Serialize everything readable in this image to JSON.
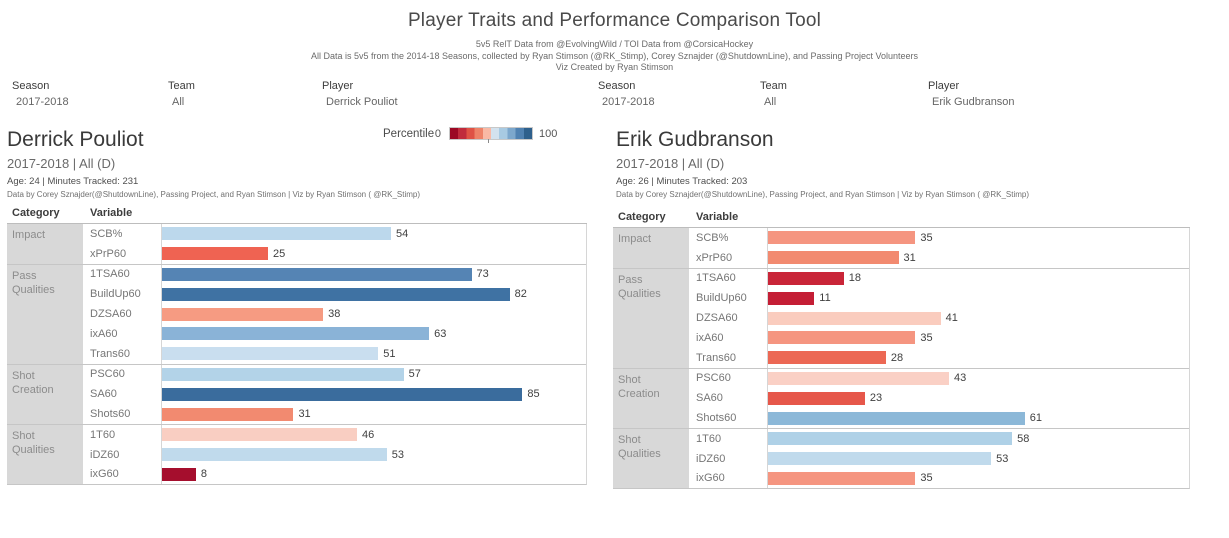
{
  "title": "Player Traits and Performance Comparison Tool",
  "subtitles": [
    "5v5 RelT Data from @EvolvingWild / TOI Data from @CorsicaHockey",
    "All Data is 5v5 from the 2014-18 Seasons, collected by Ryan Stimson (@RK_Stimp), Corey Sznajder (@ShutdownLine), and Passing Project Volunteers",
    "Viz Created by Ryan Stimson"
  ],
  "legend": {
    "label": "Percentile",
    "min": "0",
    "max": "100",
    "colors": [
      "#9C0824",
      "#C02B3C",
      "#DF5245",
      "#EE8268",
      "#F9B9A5",
      "#D3E2EE",
      "#A8CAE2",
      "#7CA7CC",
      "#4F81B1",
      "#2E608C"
    ]
  },
  "column_headers": {
    "category": "Category",
    "variable": "Variable"
  },
  "panels": [
    {
      "filters": [
        {
          "label": "Season",
          "value": "2017-2018"
        },
        {
          "label": "Team",
          "value": "All"
        },
        {
          "label": "Player",
          "value": "Derrick Pouliot"
        }
      ],
      "player": {
        "name": "Derrick Pouliot",
        "context": "2017-2018 | All (D)",
        "meta": "Age: 24 | Minutes Tracked: 231",
        "credit": "Data by Corey Sznajder(@ShutdownLine), Passing Project, and Ryan Stimson | Viz by Ryan Stimson ( @RK_Stimp)"
      },
      "groups": [
        {
          "category": "Impact",
          "rows": [
            {
              "variable": "SCB%",
              "value": 54,
              "color": "#BCD8EC"
            },
            {
              "variable": "xPrP60",
              "value": 25,
              "color": "#EF6352"
            }
          ]
        },
        {
          "category": "Pass Qualities",
          "rows": [
            {
              "variable": "1TSA60",
              "value": 73,
              "color": "#5584B4"
            },
            {
              "variable": "BuildUp60",
              "value": 82,
              "color": "#3F72A3"
            },
            {
              "variable": "DZSA60",
              "value": 38,
              "color": "#F69B82"
            },
            {
              "variable": "ixA60",
              "value": 63,
              "color": "#8AB3D7"
            },
            {
              "variable": "Trans60",
              "value": 51,
              "color": "#C9DEEF"
            }
          ]
        },
        {
          "category": "Shot Creation",
          "rows": [
            {
              "variable": "PSC60",
              "value": 57,
              "color": "#B3D3E8"
            },
            {
              "variable": "SA60",
              "value": 85,
              "color": "#3A6C9D"
            },
            {
              "variable": "Shots60",
              "value": 31,
              "color": "#F28A70"
            }
          ]
        },
        {
          "category": "Shot Qualities",
          "rows": [
            {
              "variable": "1T60",
              "value": 46,
              "color": "#F9CEC2"
            },
            {
              "variable": "iDZ60",
              "value": 53,
              "color": "#C0DAEC"
            },
            {
              "variable": "ixG60",
              "value": 8,
              "color": "#A50E2D"
            }
          ]
        }
      ]
    },
    {
      "filters": [
        {
          "label": "Season",
          "value": "2017-2018"
        },
        {
          "label": "Team",
          "value": "All"
        },
        {
          "label": "Player",
          "value": "Erik Gudbranson"
        }
      ],
      "player": {
        "name": "Erik Gudbranson",
        "context": "2017-2018 | All (D)",
        "meta": "Age: 26 | Minutes Tracked: 203",
        "credit": "Data by Corey Sznajder(@ShutdownLine), Passing Project, and Ryan Stimson | Viz by Ryan Stimson ( @RK_Stimp)"
      },
      "groups": [
        {
          "category": "Impact",
          "rows": [
            {
              "variable": "SCB%",
              "value": 35,
              "color": "#F59580"
            },
            {
              "variable": "xPrP60",
              "value": 31,
              "color": "#F28A70"
            }
          ]
        },
        {
          "category": "Pass Qualities",
          "rows": [
            {
              "variable": "1TSA60",
              "value": 18,
              "color": "#C92538"
            },
            {
              "variable": "BuildUp60",
              "value": 11,
              "color": "#C41E35"
            },
            {
              "variable": "DZSA60",
              "value": 41,
              "color": "#FACCBE"
            },
            {
              "variable": "ixA60",
              "value": 35,
              "color": "#F59580"
            },
            {
              "variable": "Trans60",
              "value": 28,
              "color": "#EC6854"
            }
          ]
        },
        {
          "category": "Shot Creation",
          "rows": [
            {
              "variable": "PSC60",
              "value": 43,
              "color": "#FAD0C5"
            },
            {
              "variable": "SA60",
              "value": 23,
              "color": "#E6574A"
            },
            {
              "variable": "Shots60",
              "value": 61,
              "color": "#8CB8D8"
            }
          ]
        },
        {
          "category": "Shot Qualities",
          "rows": [
            {
              "variable": "1T60",
              "value": 58,
              "color": "#AFD1E7"
            },
            {
              "variable": "iDZ60",
              "value": 53,
              "color": "#C0DAEC"
            },
            {
              "variable": "ixG60",
              "value": 35,
              "color": "#F59580"
            }
          ]
        }
      ]
    }
  ],
  "chart_data": [
    {
      "type": "bar",
      "orientation": "horizontal",
      "title": "Derrick Pouliot — 2017-2018 | All (D)",
      "xlabel": "Percentile",
      "xlim": [
        0,
        100
      ],
      "legend_position": "top-center",
      "grid": false,
      "categories": [
        "SCB%",
        "xPrP60",
        "1TSA60",
        "BuildUp60",
        "DZSA60",
        "ixA60",
        "Trans60",
        "PSC60",
        "SA60",
        "Shots60",
        "1T60",
        "iDZ60",
        "ixG60"
      ],
      "category_groups": [
        "Impact",
        "Impact",
        "Pass Qualities",
        "Pass Qualities",
        "Pass Qualities",
        "Pass Qualities",
        "Pass Qualities",
        "Shot Creation",
        "Shot Creation",
        "Shot Creation",
        "Shot Qualities",
        "Shot Qualities",
        "Shot Qualities"
      ],
      "values": [
        54,
        25,
        73,
        82,
        38,
        63,
        51,
        57,
        85,
        31,
        46,
        53,
        8
      ],
      "color_encoding": "diverging red (0) to blue (100) by percentile"
    },
    {
      "type": "bar",
      "orientation": "horizontal",
      "title": "Erik Gudbranson — 2017-2018 | All (D)",
      "xlabel": "Percentile",
      "xlim": [
        0,
        100
      ],
      "legend_position": "top-center",
      "grid": false,
      "categories": [
        "SCB%",
        "xPrP60",
        "1TSA60",
        "BuildUp60",
        "DZSA60",
        "ixA60",
        "Trans60",
        "PSC60",
        "SA60",
        "Shots60",
        "1T60",
        "iDZ60",
        "ixG60"
      ],
      "category_groups": [
        "Impact",
        "Impact",
        "Pass Qualities",
        "Pass Qualities",
        "Pass Qualities",
        "Pass Qualities",
        "Pass Qualities",
        "Shot Creation",
        "Shot Creation",
        "Shot Creation",
        "Shot Qualities",
        "Shot Qualities",
        "Shot Qualities"
      ],
      "values": [
        35,
        31,
        18,
        11,
        41,
        35,
        28,
        43,
        23,
        61,
        58,
        53,
        35
      ],
      "color_encoding": "diverging red (0) to blue (100) by percentile"
    }
  ]
}
